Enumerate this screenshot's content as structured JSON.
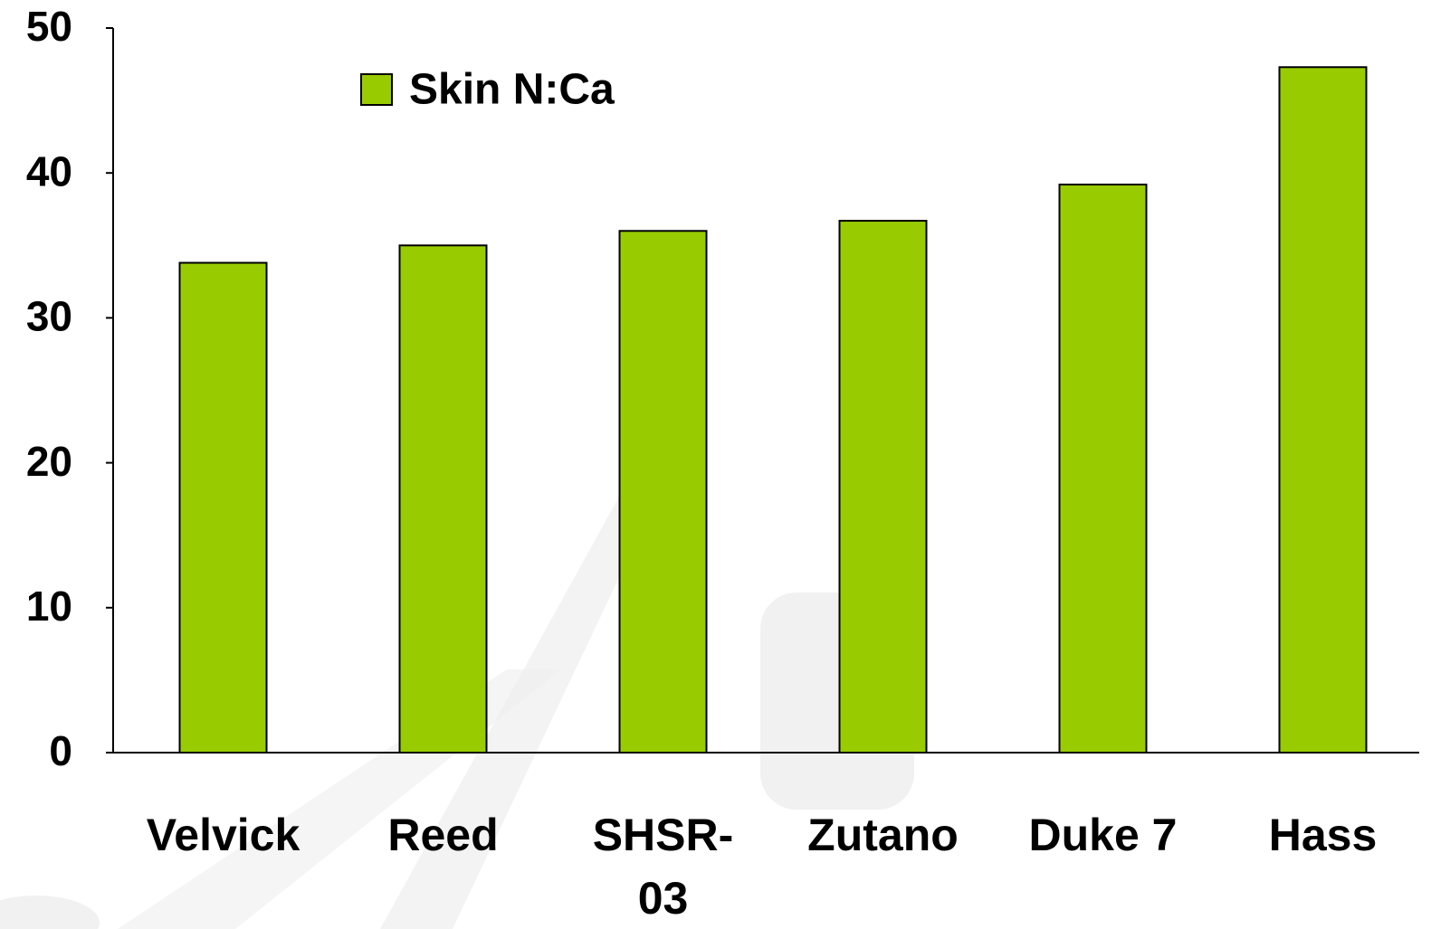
{
  "chart_data": {
    "type": "bar",
    "categories": [
      "Velvick",
      "Reed",
      "SHSR-03",
      "Zutano",
      "Duke 7",
      "Hass"
    ],
    "series": [
      {
        "name": "Skin N:Ca",
        "color": "#99cc00",
        "values": [
          33.8,
          35.0,
          36.0,
          36.7,
          39.2,
          47.3
        ]
      }
    ],
    "ylim": [
      0,
      50
    ],
    "yticks": [
      0,
      10,
      20,
      30,
      40,
      50
    ],
    "grid": false,
    "legend": "top-left"
  }
}
